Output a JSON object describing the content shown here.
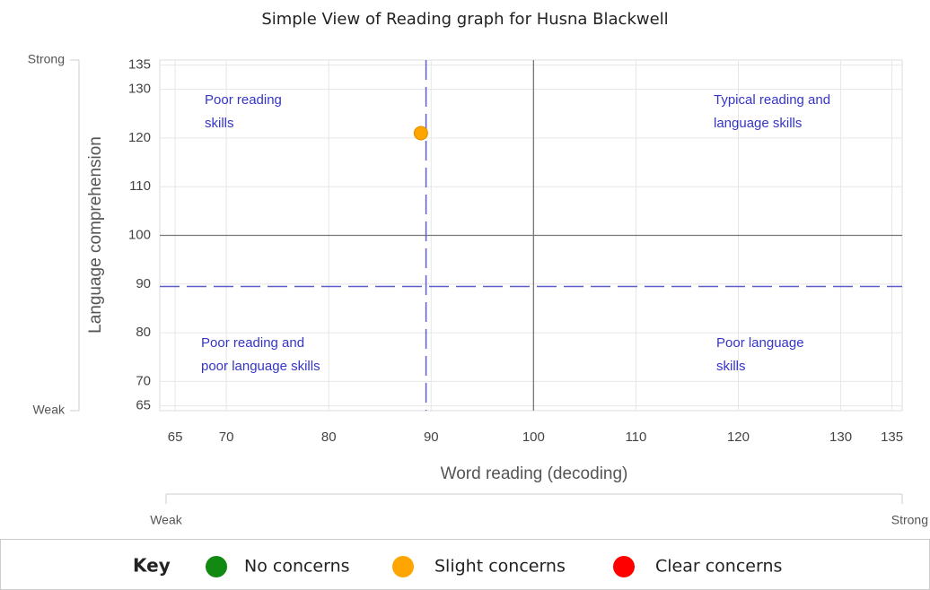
{
  "chart_data": {
    "type": "scatter",
    "title": "Simple View of Reading graph for Husna Blackwell",
    "x_label": "Word reading (decoding)",
    "y_label": "Language comprehension",
    "x": [
      89
    ],
    "y": [
      121
    ],
    "color": "#ffa500",
    "xlim": [
      63.5,
      136
    ],
    "ylim": [
      64,
      136
    ],
    "xticks": [
      65,
      70,
      80,
      90,
      100,
      110,
      120,
      130,
      135
    ],
    "yticks": [
      65,
      70,
      80,
      90,
      100,
      110,
      120,
      130,
      135
    ],
    "grid": true,
    "reference_lines": [
      {
        "axis": "x",
        "value": 100,
        "style": "solid"
      },
      {
        "axis": "y",
        "value": 100,
        "style": "solid"
      },
      {
        "axis": "x",
        "value": 89.5,
        "style": "dashed"
      },
      {
        "axis": "y",
        "value": 89.5,
        "style": "dashed"
      }
    ],
    "quadrant_labels": [
      [
        "Poor reading",
        "skills"
      ],
      [
        "Typical reading and",
        "language skills"
      ],
      [
        "Poor reading and",
        "poor language skills"
      ],
      [
        "Poor language",
        "skills"
      ]
    ],
    "y_strength": [
      "Strong",
      "Weak"
    ],
    "x_strength": [
      "Weak",
      "Strong"
    ],
    "key": {
      "title": "Key",
      "items": [
        {
          "name": "No concerns",
          "color": "#128a12"
        },
        {
          "name": "Slight concerns",
          "color": "#ffa500"
        },
        {
          "name": "Clear concerns",
          "color": "#ff0000"
        }
      ]
    }
  }
}
